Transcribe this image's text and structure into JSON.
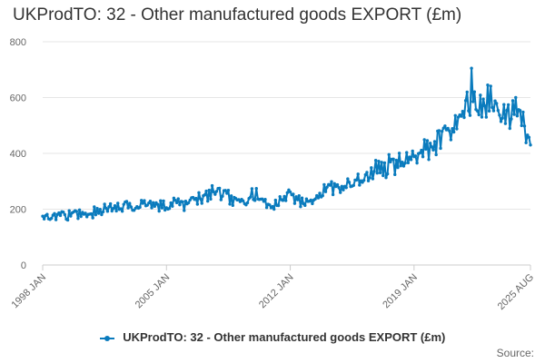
{
  "chart_data": {
    "type": "line",
    "title": "UKProdTO: 32 - Other manufactured goods EXPORT (£m)",
    "xlabel": "",
    "ylabel": "",
    "ylim": [
      0,
      800
    ],
    "yticks": [
      "0",
      "200",
      "400",
      "600",
      "800"
    ],
    "x_tick_labels": [
      "1998 JAN",
      "2005 JAN",
      "2012 JAN",
      "2019 JAN",
      "2025 AUG"
    ],
    "grid": true,
    "legend_position": "bottom",
    "source_label": "Source:",
    "series": [
      {
        "name": "UKProdTO: 32 - Other manufactured goods EXPORT (£m)",
        "color": "#0a7bbd",
        "x_start": "1998 JAN",
        "x_end": "2025 AUG",
        "frequency": "monthly",
        "anchor_values": [
          {
            "x": "1998 JAN",
            "y": 175
          },
          {
            "x": "1999 JAN",
            "y": 180
          },
          {
            "x": "2000 JAN",
            "y": 180
          },
          {
            "x": "2001 JAN",
            "y": 190
          },
          {
            "x": "2002 JAN",
            "y": 205
          },
          {
            "x": "2003 JAN",
            "y": 210
          },
          {
            "x": "2004 JAN",
            "y": 210
          },
          {
            "x": "2005 JAN",
            "y": 215
          },
          {
            "x": "2006 JAN",
            "y": 220
          },
          {
            "x": "2007 JAN",
            "y": 235
          },
          {
            "x": "2008 JAN",
            "y": 265
          },
          {
            "x": "2009 JAN",
            "y": 225
          },
          {
            "x": "2010 JAN",
            "y": 255
          },
          {
            "x": "2011 JAN",
            "y": 210
          },
          {
            "x": "2012 JAN",
            "y": 255
          },
          {
            "x": "2013 JAN",
            "y": 215
          },
          {
            "x": "2014 JAN",
            "y": 275
          },
          {
            "x": "2015 JAN",
            "y": 285
          },
          {
            "x": "2016 JAN",
            "y": 300
          },
          {
            "x": "2017 JAN",
            "y": 340
          },
          {
            "x": "2018 JAN",
            "y": 365
          },
          {
            "x": "2019 JAN",
            "y": 380
          },
          {
            "x": "2020 JAN",
            "y": 420
          },
          {
            "x": "2021 JAN",
            "y": 470
          },
          {
            "x": "2022 JAN",
            "y": 575
          },
          {
            "x": "2023 JAN",
            "y": 590
          },
          {
            "x": "2024 JAN",
            "y": 555
          },
          {
            "x": "2025 JAN",
            "y": 520
          },
          {
            "x": "2025 AUG",
            "y": 430
          }
        ],
        "notable_points": [
          {
            "x": "2022 APR",
            "y": 705
          },
          {
            "x": "2023 MAR",
            "y": 645
          },
          {
            "x": "2024 OCT",
            "y": 600
          }
        ]
      }
    ]
  }
}
